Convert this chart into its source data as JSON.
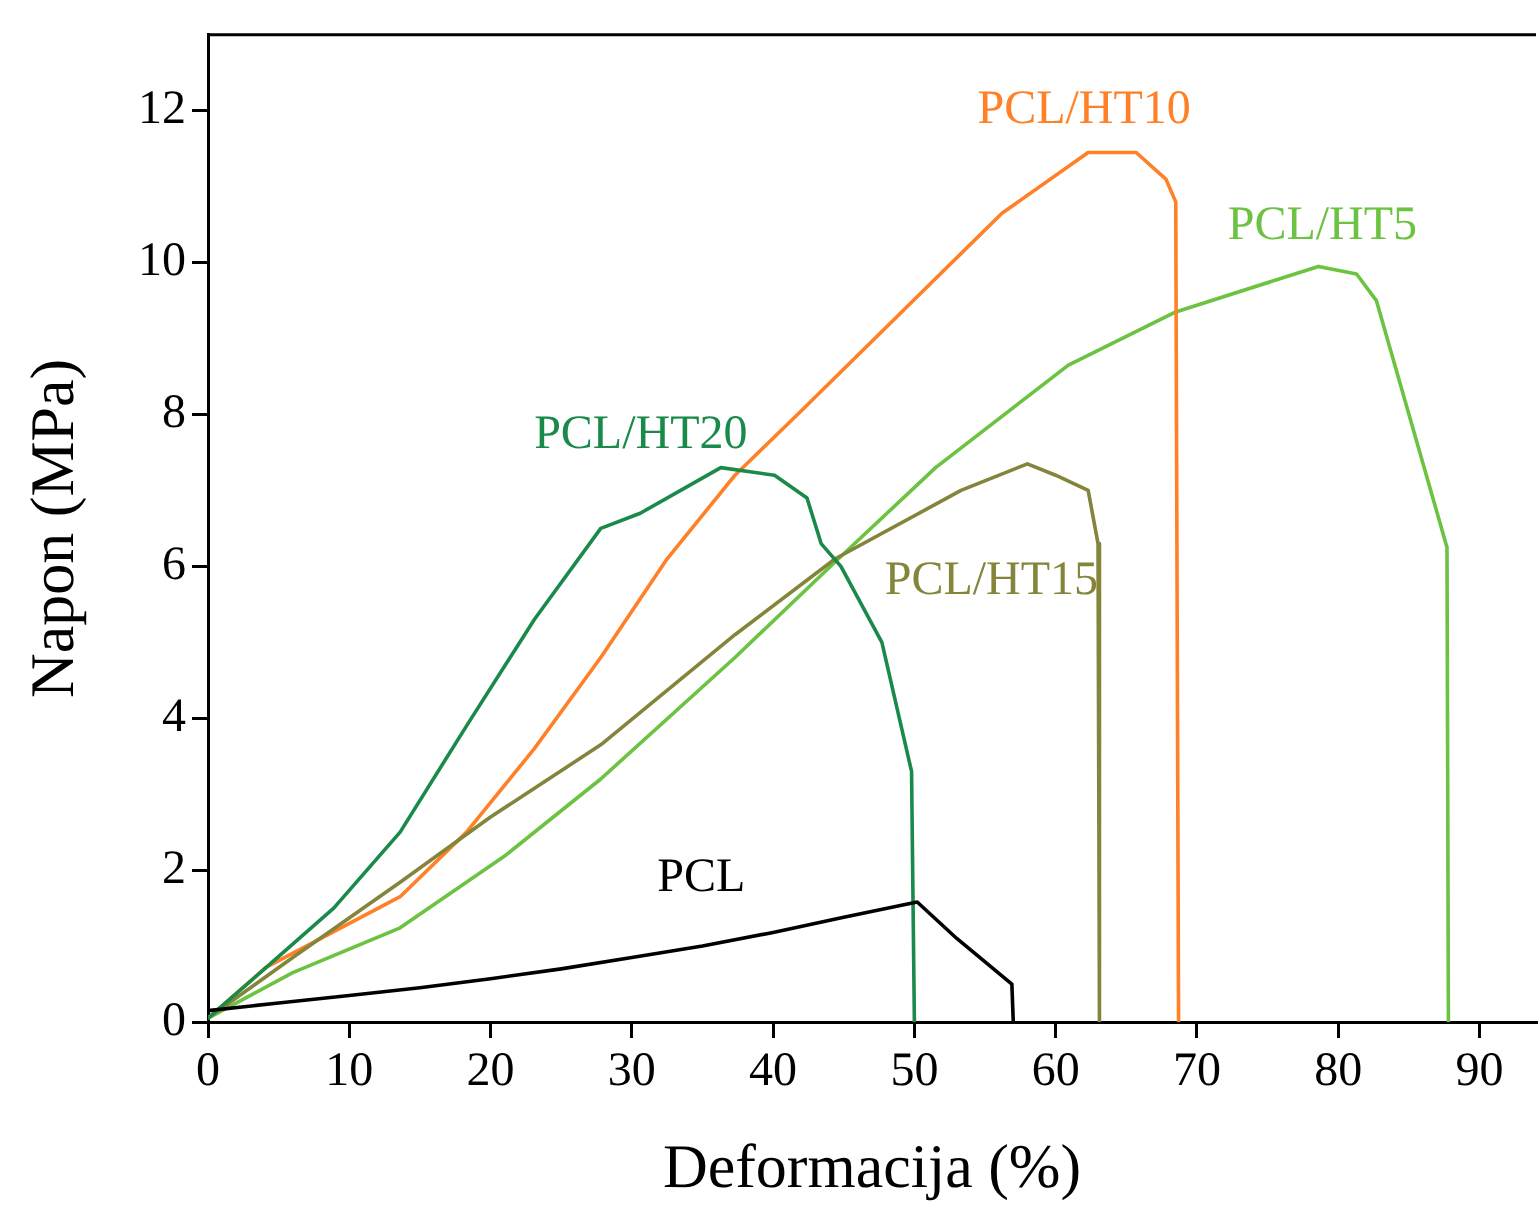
{
  "chart_data": {
    "type": "line",
    "xlabel": "Deformacija (%)",
    "ylabel": "Napon (MPa)",
    "xlim": [
      0,
      94
    ],
    "xticks": [
      0,
      10,
      20,
      30,
      40,
      50,
      60,
      70,
      80,
      90
    ],
    "ylim": [
      0,
      13
    ],
    "yticks": [
      0,
      2,
      4,
      6,
      8,
      10,
      12
    ],
    "grid": false,
    "legend": false,
    "marker": "none",
    "line_style": "solid",
    "series": [
      {
        "name": "PCL",
        "color": "#000000",
        "x": [
          0,
          5,
          10,
          15,
          20,
          25,
          30,
          35,
          40,
          45,
          50.2,
          53,
          56.9,
          57
        ],
        "values": [
          0.15,
          0.25,
          0.35,
          0.45,
          0.57,
          0.7,
          0.85,
          1.0,
          1.18,
          1.38,
          1.58,
          1.1,
          0.5,
          0
        ]
      },
      {
        "name": "PCL/HT20",
        "color": "#1a8a4a",
        "x": [
          0,
          4,
          8.9,
          13.6,
          18.3,
          23.1,
          27.8,
          30.6,
          36.3,
          40.1,
          42.4,
          43.4,
          44.8,
          47.7,
          49.8,
          50
        ],
        "values": [
          0.05,
          0.7,
          1.5,
          2.5,
          3.9,
          5.3,
          6.5,
          6.7,
          7.3,
          7.2,
          6.9,
          6.3,
          6.0,
          5.0,
          3.3,
          0
        ]
      },
      {
        "name": "PCL/HT15",
        "color": "#84843a",
        "x": [
          0,
          6,
          13.6,
          20,
          27.8,
          37.3,
          44.4,
          53.3,
          58,
          60,
          62.3,
          63,
          63.1
        ],
        "values": [
          0.05,
          0.85,
          1.84,
          2.7,
          3.65,
          5.1,
          6.1,
          7.0,
          7.35,
          7.2,
          7.0,
          6.3,
          0
        ]
      },
      {
        "name": "PCL/HT10",
        "color": "#ff8026",
        "x": [
          0,
          4.1,
          13.6,
          18.3,
          23.1,
          27.8,
          32.5,
          37.3,
          42,
          49.1,
          56.2,
          62.3,
          65.7,
          67.8,
          68.5,
          68.7
        ],
        "values": [
          0.05,
          0.72,
          1.65,
          2.5,
          3.6,
          4.8,
          6.1,
          7.2,
          8.05,
          9.35,
          10.65,
          11.45,
          11.45,
          11.1,
          10.8,
          0
        ]
      },
      {
        "name": "PCL/HT5",
        "color": "#6cc241",
        "x": [
          0,
          6,
          13.6,
          21.1,
          27.8,
          37.3,
          44.4,
          51.5,
          60.9,
          68.5,
          78.6,
          81.3,
          82.7,
          87.7,
          87.8
        ],
        "values": [
          0.05,
          0.65,
          1.24,
          2.2,
          3.2,
          4.8,
          6.06,
          7.3,
          8.65,
          9.35,
          9.95,
          9.85,
          9.5,
          6.25,
          0
        ]
      }
    ]
  }
}
